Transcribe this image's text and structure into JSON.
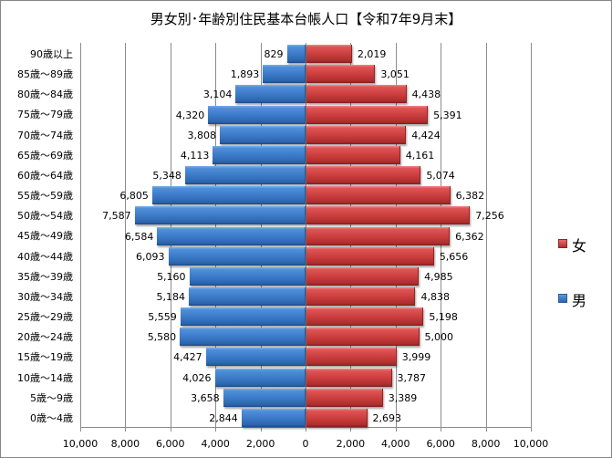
{
  "chart_data": {
    "type": "bar",
    "orientation": "horizontal",
    "subtype": "population-pyramid",
    "title": "男女別･年齢別住民基本台帳人口【令和7年9月末】",
    "categories": [
      "90歳以上",
      "85歳～89歳",
      "80歳～84歳",
      "75歳～79歳",
      "70歳～74歳",
      "65歳～69歳",
      "60歳～64歳",
      "55歳～59歳",
      "50歳～54歳",
      "45歳～49歳",
      "40歳～44歳",
      "35歳～39歳",
      "30歳～34歳",
      "25歳～29歳",
      "20歳～24歳",
      "15歳～19歳",
      "10歳～14歳",
      "5歳～9歳",
      "0歳～4歳"
    ],
    "series": [
      {
        "name": "男",
        "color": "#3a78c6",
        "side": "left",
        "values": [
          829,
          1893,
          3104,
          4320,
          3808,
          4113,
          5348,
          6805,
          7587,
          6584,
          6093,
          5160,
          5184,
          5559,
          5580,
          4427,
          4026,
          3658,
          2844
        ],
        "labels": [
          "829",
          "1,893",
          "3,104",
          "4,320",
          "3,808",
          "4,113",
          "5,348",
          "6,805",
          "7,587",
          "6,584",
          "6,093",
          "5,160",
          "5,184",
          "5,559",
          "5,580",
          "4,427",
          "4,026",
          "3,658",
          "2,844"
        ]
      },
      {
        "name": "女",
        "color": "#c93c3c",
        "side": "right",
        "values": [
          2019,
          3051,
          4438,
          5391,
          4424,
          4161,
          5074,
          6382,
          7256,
          6362,
          5656,
          4985,
          4838,
          5198,
          5000,
          3999,
          3787,
          3389,
          2693
        ],
        "labels": [
          "2,019",
          "3,051",
          "4,438",
          "5,391",
          "4,424",
          "4,161",
          "5,074",
          "6,382",
          "7,256",
          "6,362",
          "5,656",
          "4,985",
          "4,838",
          "5,198",
          "5,000",
          "3,999",
          "3,787",
          "3,389",
          "2,693"
        ]
      }
    ],
    "xlabel": "",
    "ylabel": "",
    "xlim": [
      -10000,
      10000
    ],
    "x_ticks": [
      -10000,
      -8000,
      -6000,
      -4000,
      -2000,
      0,
      2000,
      4000,
      6000,
      8000,
      10000
    ],
    "x_tick_labels": [
      "10,000",
      "8,000",
      "6,000",
      "4,000",
      "2,000",
      "0",
      "2,000",
      "4,000",
      "6,000",
      "8,000",
      "10,000"
    ],
    "grid": "vertical",
    "legend": {
      "position": "right",
      "entries": [
        "女",
        "男"
      ]
    }
  },
  "legend": {
    "female_label": "女",
    "male_label": "男"
  }
}
